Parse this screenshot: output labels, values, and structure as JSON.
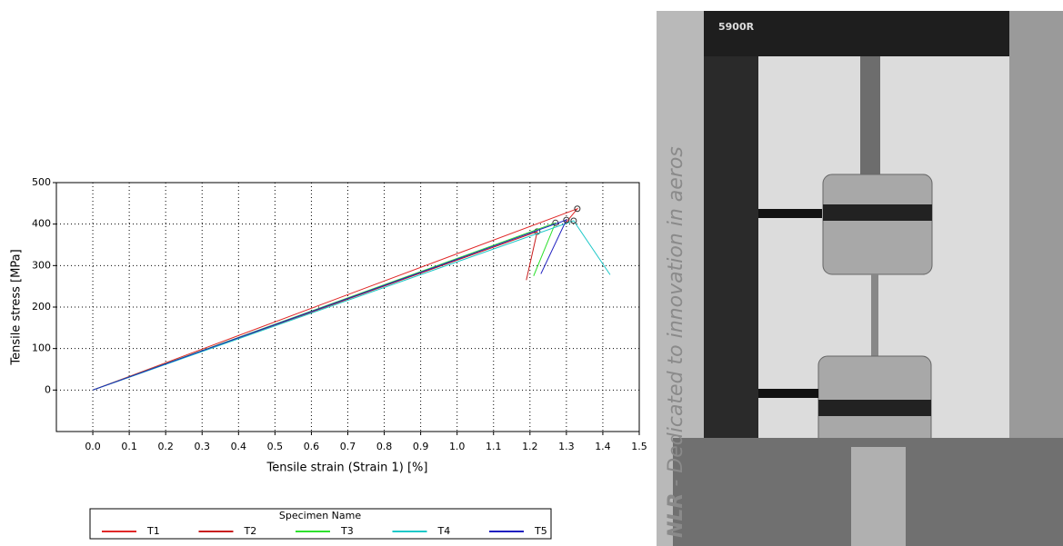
{
  "chart_data": {
    "type": "line",
    "x_label": "Tensile strain (Strain 1) [%]",
    "y_label": "Tensile stress [MPa]",
    "xlim": [
      -0.1,
      1.5
    ],
    "ylim": [
      -100,
      500
    ],
    "xticks": [
      {
        "value": 0,
        "label": "0.0"
      },
      0.1,
      0.2,
      0.3,
      0.4,
      0.5,
      0.6,
      0.7,
      0.8,
      0.9,
      {
        "value": 1,
        "label": "1.0"
      },
      1.1,
      1.2,
      1.3,
      1.4,
      1.5
    ],
    "yticks": [
      0,
      100,
      200,
      300,
      400,
      500
    ],
    "grid": true,
    "legend_title": "Specimen Name",
    "legend": "bottom",
    "series": [
      {
        "name": "T1",
        "color": "#e02828",
        "x": [
          0,
          1.33,
          1.3
        ],
        "values": [
          0,
          437,
          405
        ]
      },
      {
        "name": "T2",
        "color": "#c81c1c",
        "x": [
          0,
          1.22,
          1.19
        ],
        "values": [
          0,
          382,
          265
        ]
      },
      {
        "name": "T3",
        "color": "#2ee02e",
        "x": [
          0,
          1.27,
          1.21
        ],
        "values": [
          0,
          403,
          275
        ]
      },
      {
        "name": "T4",
        "color": "#1ec8c8",
        "x": [
          0,
          1.32,
          1.42
        ],
        "values": [
          0,
          408,
          278
        ]
      },
      {
        "name": "T5",
        "color": "#2020c0",
        "x": [
          0,
          1.3,
          1.23
        ],
        "values": [
          0,
          410,
          280
        ]
      }
    ]
  },
  "photo": {
    "machine_label": "5900R",
    "banner_bold": "NLR",
    "banner_text": " - Dedicated to innovation in aeros"
  }
}
